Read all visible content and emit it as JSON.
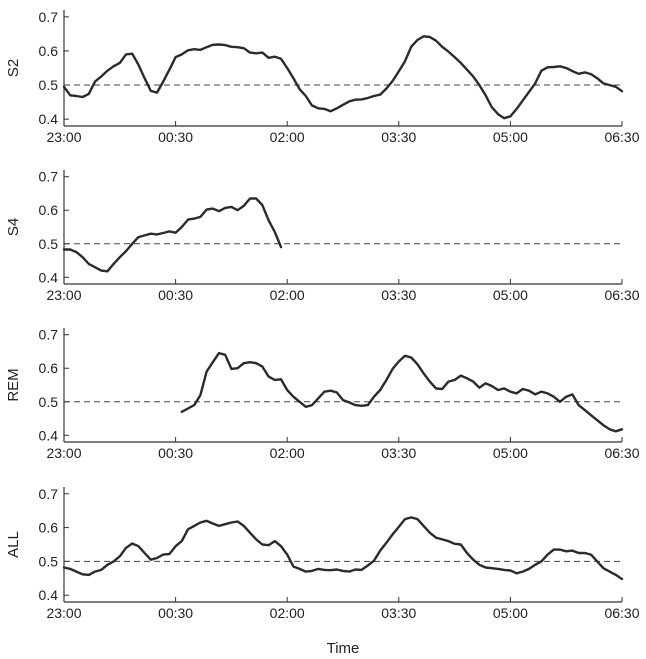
{
  "xlabel": "Time",
  "colors": {
    "line": "#2b2b2b",
    "axis": "#333333",
    "reference": "#444444"
  },
  "chart_data": [
    {
      "type": "line",
      "ylabel": "S2",
      "xlim": [
        "23:00",
        "06:30"
      ],
      "ylim": [
        0.38,
        0.72
      ],
      "xticks": [
        "23:00",
        "00:30",
        "02:00",
        "03:30",
        "05:00",
        "06:30"
      ],
      "yticks": [
        "0.4",
        "0.5",
        "0.6",
        "0.7"
      ],
      "reference_line": 0.5,
      "grid": false,
      "x": [
        "23:00",
        "23:05",
        "23:10",
        "23:15",
        "23:20",
        "23:25",
        "23:30",
        "23:35",
        "23:40",
        "23:45",
        "23:50",
        "23:55",
        "00:00",
        "00:05",
        "00:10",
        "00:15",
        "00:20",
        "00:25",
        "00:30",
        "00:35",
        "00:40",
        "00:45",
        "00:50",
        "00:55",
        "01:00",
        "01:05",
        "01:10",
        "01:15",
        "01:20",
        "01:25",
        "01:30",
        "01:35",
        "01:40",
        "01:45",
        "01:50",
        "01:55",
        "02:00",
        "02:05",
        "02:10",
        "02:15",
        "02:20",
        "02:25",
        "02:30",
        "02:35",
        "02:40",
        "02:45",
        "02:50",
        "02:55",
        "03:00",
        "03:05",
        "03:10",
        "03:15",
        "03:20",
        "03:25",
        "03:30",
        "03:35",
        "03:40",
        "03:45",
        "03:50",
        "03:55",
        "04:00",
        "04:05",
        "04:10",
        "04:15",
        "04:20",
        "04:25",
        "04:30",
        "04:35",
        "04:40",
        "04:45",
        "04:50",
        "04:55",
        "05:00",
        "05:05",
        "05:10",
        "05:15",
        "05:20",
        "05:25",
        "05:30",
        "05:35",
        "05:40",
        "05:45",
        "05:50",
        "05:55",
        "06:00",
        "06:05",
        "06:10",
        "06:15",
        "06:20",
        "06:25",
        "06:30"
      ],
      "y": [
        0.495,
        0.47,
        0.468,
        0.465,
        0.474,
        0.51,
        0.525,
        0.542,
        0.555,
        0.565,
        0.59,
        0.592,
        0.56,
        0.52,
        0.483,
        0.478,
        0.51,
        0.545,
        0.582,
        0.59,
        0.602,
        0.605,
        0.603,
        0.611,
        0.618,
        0.619,
        0.617,
        0.612,
        0.611,
        0.608,
        0.595,
        0.593,
        0.595,
        0.58,
        0.583,
        0.577,
        0.55,
        0.52,
        0.488,
        0.468,
        0.44,
        0.432,
        0.43,
        0.423,
        0.432,
        0.442,
        0.452,
        0.457,
        0.458,
        0.462,
        0.468,
        0.472,
        0.49,
        0.512,
        0.54,
        0.57,
        0.612,
        0.632,
        0.643,
        0.641,
        0.63,
        0.612,
        0.598,
        0.582,
        0.565,
        0.545,
        0.525,
        0.5,
        0.47,
        0.435,
        0.415,
        0.403,
        0.408,
        0.43,
        0.455,
        0.48,
        0.505,
        0.542,
        0.552,
        0.553,
        0.555,
        0.55,
        0.541,
        0.533,
        0.537,
        0.532,
        0.52,
        0.505,
        0.5,
        0.495,
        0.482
      ]
    },
    {
      "type": "line",
      "ylabel": "S4",
      "xlim": [
        "23:00",
        "06:30"
      ],
      "ylim": [
        0.38,
        0.72
      ],
      "xticks": [
        "23:00",
        "00:30",
        "02:00",
        "03:30",
        "05:00",
        "06:30"
      ],
      "yticks": [
        "0.4",
        "0.5",
        "0.6",
        "0.7"
      ],
      "reference_line": 0.5,
      "grid": false,
      "x": [
        "23:00",
        "23:05",
        "23:10",
        "23:15",
        "23:20",
        "23:25",
        "23:30",
        "23:35",
        "23:40",
        "23:45",
        "23:50",
        "23:55",
        "00:00",
        "00:05",
        "00:10",
        "00:15",
        "00:20",
        "00:25",
        "00:30",
        "00:35",
        "00:40",
        "00:45",
        "00:50",
        "00:55",
        "01:00",
        "01:05",
        "01:10",
        "01:15",
        "01:20",
        "01:25",
        "01:30",
        "01:35",
        "01:40",
        "01:45",
        "01:50",
        "01:55"
      ],
      "y": [
        0.483,
        0.483,
        0.475,
        0.46,
        0.44,
        0.43,
        0.42,
        0.418,
        0.44,
        0.46,
        0.478,
        0.5,
        0.52,
        0.525,
        0.53,
        0.528,
        0.532,
        0.537,
        0.533,
        0.55,
        0.572,
        0.575,
        0.58,
        0.602,
        0.605,
        0.597,
        0.607,
        0.61,
        0.6,
        0.613,
        0.635,
        0.635,
        0.615,
        0.57,
        0.535,
        0.49
      ]
    },
    {
      "type": "line",
      "ylabel": "REM",
      "xlim": [
        "23:00",
        "06:30"
      ],
      "ylim": [
        0.38,
        0.72
      ],
      "xticks": [
        "23:00",
        "00:30",
        "02:00",
        "03:30",
        "05:00",
        "06:30"
      ],
      "yticks": [
        "0.4",
        "0.5",
        "0.6",
        "0.7"
      ],
      "reference_line": 0.5,
      "grid": false,
      "x": [
        "00:35",
        "00:40",
        "00:45",
        "00:50",
        "00:55",
        "01:00",
        "01:05",
        "01:10",
        "01:15",
        "01:20",
        "01:25",
        "01:30",
        "01:35",
        "01:40",
        "01:45",
        "01:50",
        "01:55",
        "02:00",
        "02:05",
        "02:10",
        "02:15",
        "02:20",
        "02:25",
        "02:30",
        "02:35",
        "02:40",
        "02:45",
        "02:50",
        "02:55",
        "03:00",
        "03:05",
        "03:10",
        "03:15",
        "03:20",
        "03:25",
        "03:30",
        "03:35",
        "03:40",
        "03:45",
        "03:50",
        "03:55",
        "04:00",
        "04:05",
        "04:10",
        "04:15",
        "04:20",
        "04:25",
        "04:30",
        "04:35",
        "04:40",
        "04:45",
        "04:50",
        "04:55",
        "05:00",
        "05:05",
        "05:10",
        "05:15",
        "05:20",
        "05:25",
        "05:30",
        "05:35",
        "05:40",
        "05:45",
        "05:50",
        "05:55",
        "06:00",
        "06:05",
        "06:10",
        "06:15",
        "06:20",
        "06:25",
        "06:30"
      ],
      "y": [
        0.47,
        0.48,
        0.49,
        0.52,
        0.59,
        0.618,
        0.645,
        0.64,
        0.598,
        0.6,
        0.615,
        0.618,
        0.615,
        0.605,
        0.575,
        0.565,
        0.567,
        0.535,
        0.515,
        0.5,
        0.485,
        0.49,
        0.51,
        0.53,
        0.533,
        0.528,
        0.505,
        0.498,
        0.49,
        0.488,
        0.49,
        0.515,
        0.535,
        0.565,
        0.598,
        0.62,
        0.637,
        0.632,
        0.612,
        0.585,
        0.56,
        0.54,
        0.538,
        0.56,
        0.565,
        0.578,
        0.57,
        0.56,
        0.542,
        0.555,
        0.547,
        0.535,
        0.54,
        0.53,
        0.525,
        0.538,
        0.533,
        0.522,
        0.53,
        0.525,
        0.515,
        0.5,
        0.515,
        0.522,
        0.49,
        0.475,
        0.46,
        0.445,
        0.43,
        0.418,
        0.412,
        0.418
      ]
    },
    {
      "type": "line",
      "ylabel": "ALL",
      "xlim": [
        "23:00",
        "06:30"
      ],
      "ylim": [
        0.38,
        0.72
      ],
      "xticks": [
        "23:00",
        "00:30",
        "02:00",
        "03:30",
        "05:00",
        "06:30"
      ],
      "yticks": [
        "0.4",
        "0.5",
        "0.6",
        "0.7"
      ],
      "reference_line": 0.5,
      "grid": false,
      "x": [
        "23:00",
        "23:05",
        "23:10",
        "23:15",
        "23:20",
        "23:25",
        "23:30",
        "23:35",
        "23:40",
        "23:45",
        "23:50",
        "23:55",
        "00:00",
        "00:05",
        "00:10",
        "00:15",
        "00:20",
        "00:25",
        "00:30",
        "00:35",
        "00:40",
        "00:45",
        "00:50",
        "00:55",
        "01:00",
        "01:05",
        "01:10",
        "01:15",
        "01:20",
        "01:25",
        "01:30",
        "01:35",
        "01:40",
        "01:45",
        "01:50",
        "01:55",
        "02:00",
        "02:05",
        "02:10",
        "02:15",
        "02:20",
        "02:25",
        "02:30",
        "02:35",
        "02:40",
        "02:45",
        "02:50",
        "02:55",
        "03:00",
        "03:05",
        "03:10",
        "03:15",
        "03:20",
        "03:25",
        "03:30",
        "03:35",
        "03:40",
        "03:45",
        "03:50",
        "03:55",
        "04:00",
        "04:05",
        "04:10",
        "04:15",
        "04:20",
        "04:25",
        "04:30",
        "04:35",
        "04:40",
        "04:45",
        "04:50",
        "04:55",
        "05:00",
        "05:05",
        "05:10",
        "05:15",
        "05:20",
        "05:25",
        "05:30",
        "05:35",
        "05:40",
        "05:45",
        "05:50",
        "05:55",
        "06:00",
        "06:05",
        "06:10",
        "06:15",
        "06:20",
        "06:25",
        "06:30"
      ],
      "y": [
        0.482,
        0.478,
        0.47,
        0.462,
        0.46,
        0.47,
        0.475,
        0.49,
        0.5,
        0.515,
        0.54,
        0.553,
        0.545,
        0.525,
        0.505,
        0.51,
        0.52,
        0.522,
        0.545,
        0.56,
        0.595,
        0.605,
        0.615,
        0.62,
        0.612,
        0.605,
        0.61,
        0.615,
        0.618,
        0.605,
        0.585,
        0.565,
        0.55,
        0.548,
        0.56,
        0.545,
        0.52,
        0.485,
        0.478,
        0.47,
        0.472,
        0.478,
        0.475,
        0.474,
        0.476,
        0.472,
        0.47,
        0.476,
        0.475,
        0.488,
        0.502,
        0.532,
        0.555,
        0.58,
        0.602,
        0.625,
        0.63,
        0.625,
        0.605,
        0.585,
        0.57,
        0.565,
        0.56,
        0.552,
        0.55,
        0.525,
        0.505,
        0.49,
        0.482,
        0.48,
        0.478,
        0.475,
        0.473,
        0.465,
        0.47,
        0.478,
        0.49,
        0.5,
        0.52,
        0.535,
        0.535,
        0.53,
        0.532,
        0.525,
        0.525,
        0.52,
        0.5,
        0.48,
        0.47,
        0.46,
        0.448
      ]
    }
  ]
}
